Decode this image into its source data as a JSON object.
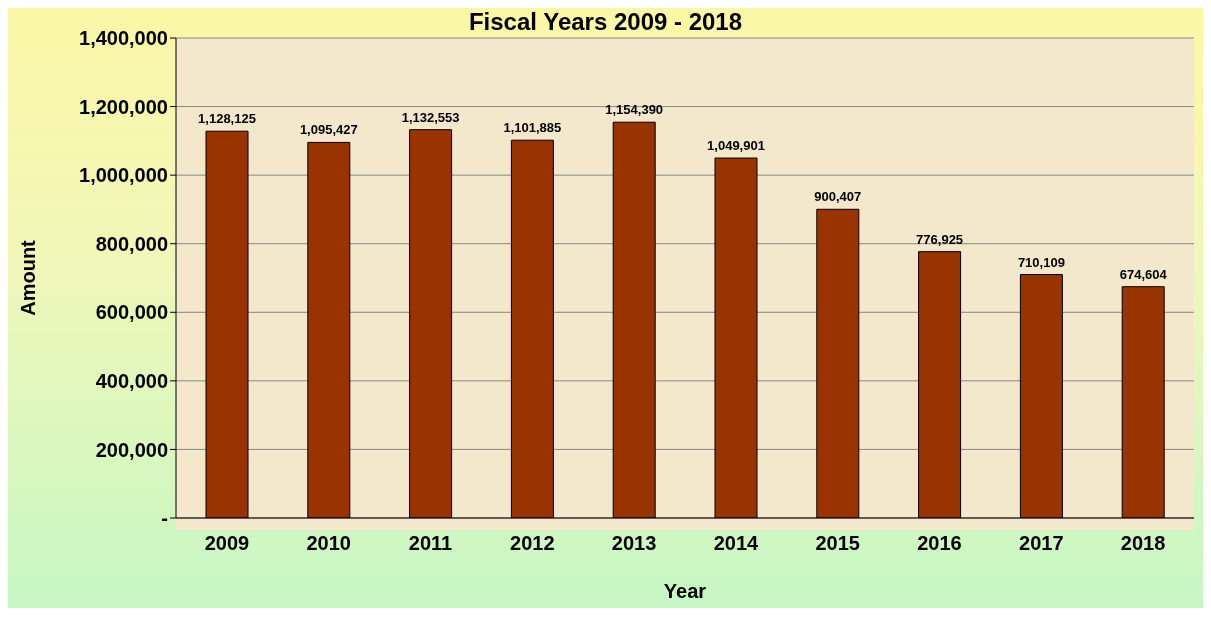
{
  "chart_data": {
    "type": "bar",
    "title": "Fiscal Years 2009 - 2018",
    "xlabel": "Year",
    "ylabel": "Amount",
    "categories": [
      "2009",
      "2010",
      "2011",
      "2012",
      "2013",
      "2014",
      "2015",
      "2016",
      "2017",
      "2018"
    ],
    "values": [
      1128125,
      1095427,
      1132553,
      1101885,
      1154390,
      1049901,
      900407,
      776925,
      710109,
      674604
    ],
    "value_labels": [
      "1,128,125",
      "1,095,427",
      "1,132,553",
      "1,101,885",
      "1,154,390",
      "1,049,901",
      "900,407",
      "776,925",
      "710,109",
      "674,604"
    ],
    "color": "#993300",
    "ylim": [
      0,
      1400000
    ],
    "yticks": [
      {
        "value": 0,
        "label": "-"
      },
      {
        "value": 200000,
        "label": "200,000"
      },
      {
        "value": 400000,
        "label": "400,000"
      },
      {
        "value": 600000,
        "label": "600,000"
      },
      {
        "value": 800000,
        "label": "800,000"
      },
      {
        "value": 1000000,
        "label": "1,000,000"
      },
      {
        "value": 1200000,
        "label": "1,200,000"
      },
      {
        "value": 1400000,
        "label": "1,400,000"
      }
    ],
    "grid": "y",
    "legend": false
  }
}
